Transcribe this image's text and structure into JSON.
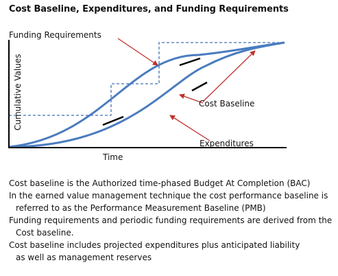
{
  "title": "Cost Baseline, Expenditures, and Funding Requirements",
  "diagram": {
    "labels": {
      "funding_requirements": "Funding Requirements",
      "cost_baseline": "Cost Baseline",
      "expenditures": "Expenditures",
      "y_axis": "Cumulative Values",
      "x_axis": "Time"
    },
    "colors": {
      "curve": "#4a7cbf",
      "dashed": "#3f6fb5",
      "arrow": "#c0302d",
      "axis": "#000000"
    }
  },
  "notes": [
    "Cost baseline is the Authorized time-phased Budget At Completion (BAC)",
    "In the earned value management technique the cost performance baseline is",
    "referred to as the Performance Measurement Baseline (PMB)",
    "Funding requirements and periodic funding requirements are derived from the",
    "Cost baseline.",
    "Cost baseline includes projected expenditures plus anticipated liability",
    "as well as management reserves"
  ]
}
